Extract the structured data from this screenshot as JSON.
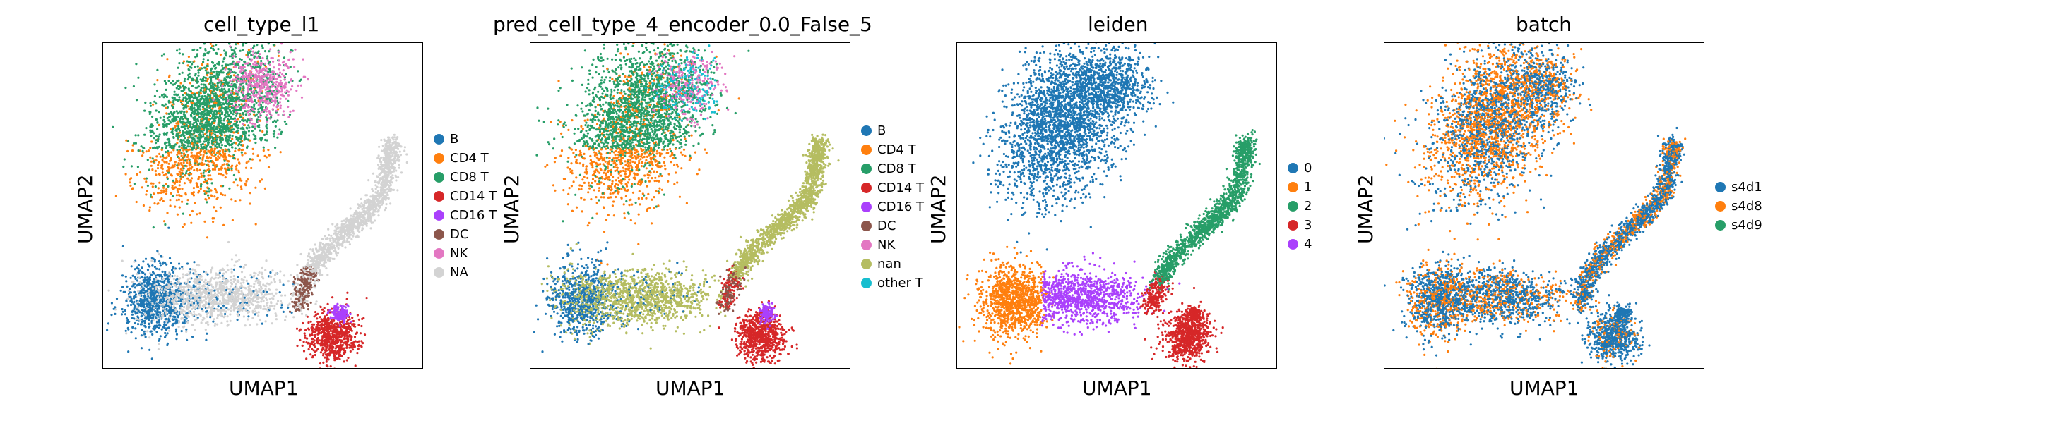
{
  "chart_data": [
    {
      "type": "scatter",
      "title": "cell_type_l1",
      "xlabel": "UMAP1",
      "ylabel": "UMAP2",
      "grid": false,
      "legend_position": "right",
      "legend": [
        {
          "label": "B",
          "color": "#1f77b4"
        },
        {
          "label": "CD4 T",
          "color": "#ff7f0e"
        },
        {
          "label": "CD8 T",
          "color": "#279e68"
        },
        {
          "label": "CD14 T",
          "color": "#d62728"
        },
        {
          "label": "CD16 T",
          "color": "#aa40fc"
        },
        {
          "label": "DC",
          "color": "#8c564b"
        },
        {
          "label": "NK",
          "color": "#e377c2"
        },
        {
          "label": "NA",
          "color": "#d3d3d3"
        }
      ]
    },
    {
      "type": "scatter",
      "title": "pred_cell_type_4_encoder_0.0_False_5",
      "xlabel": "UMAP1",
      "ylabel": "UMAP2",
      "grid": false,
      "legend_position": "right",
      "legend": [
        {
          "label": "B",
          "color": "#1f77b4"
        },
        {
          "label": "CD4 T",
          "color": "#ff7f0e"
        },
        {
          "label": "CD8 T",
          "color": "#279e68"
        },
        {
          "label": "CD14 T",
          "color": "#d62728"
        },
        {
          "label": "CD16 T",
          "color": "#aa40fc"
        },
        {
          "label": "DC",
          "color": "#8c564b"
        },
        {
          "label": "NK",
          "color": "#e377c2"
        },
        {
          "label": "nan",
          "color": "#b5bd61"
        },
        {
          "label": "other T",
          "color": "#17becf"
        }
      ]
    },
    {
      "type": "scatter",
      "title": "leiden",
      "xlabel": "UMAP1",
      "ylabel": "UMAP2",
      "grid": false,
      "legend_position": "right",
      "legend": [
        {
          "label": "0",
          "color": "#1f77b4"
        },
        {
          "label": "1",
          "color": "#ff7f0e"
        },
        {
          "label": "2",
          "color": "#279e68"
        },
        {
          "label": "3",
          "color": "#d62728"
        },
        {
          "label": "4",
          "color": "#aa40fc"
        }
      ]
    },
    {
      "type": "scatter",
      "title": "batch",
      "xlabel": "UMAP1",
      "ylabel": "UMAP2",
      "grid": false,
      "legend_position": "right",
      "legend": [
        {
          "label": "s4d1",
          "color": "#1f77b4"
        },
        {
          "label": "s4d8",
          "color": "#ff7f0e"
        },
        {
          "label": "s4d9",
          "color": "#279e68"
        }
      ]
    }
  ]
}
